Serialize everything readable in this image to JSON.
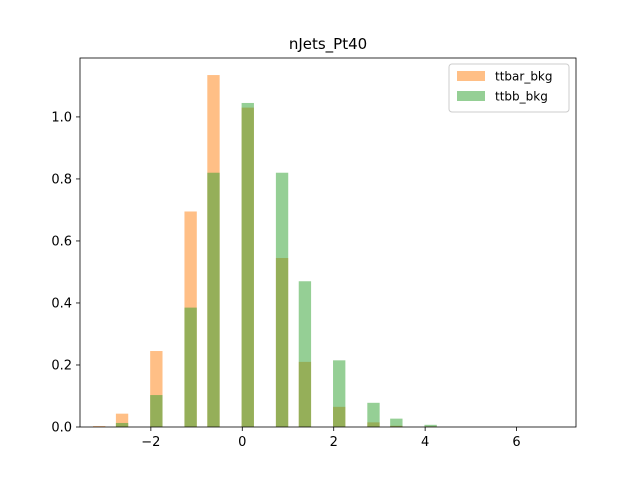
{
  "chart_data": {
    "type": "bar",
    "title": "nJets_Pt40",
    "xlabel": "",
    "ylabel": "",
    "xlim": [
      -3.55,
      7.3
    ],
    "ylim": [
      0,
      1.19
    ],
    "xticks": [
      -2,
      0,
      2,
      4,
      6
    ],
    "xtick_labels": [
      "−2",
      "0",
      "2",
      "4",
      "6"
    ],
    "yticks": [
      0.0,
      0.2,
      0.4,
      0.6,
      0.8,
      1.0
    ],
    "ytick_labels": [
      "0.0",
      "0.2",
      "0.4",
      "0.6",
      "0.8",
      "1.0"
    ],
    "bar_width": 0.27,
    "legend_position": "top-right",
    "grid": false,
    "series": [
      {
        "name": "ttbar_bkg",
        "color": "#ff7f0e",
        "alpha": 0.5,
        "x": [
          -3.13,
          -2.63,
          -1.88,
          -1.13,
          -0.63,
          0.12,
          0.87,
          1.37,
          2.12,
          2.87,
          3.37,
          4.12
        ],
        "values": [
          0.003,
          0.043,
          0.245,
          0.695,
          1.135,
          1.03,
          0.545,
          0.21,
          0.065,
          0.015,
          0.004,
          0.002
        ]
      },
      {
        "name": "ttbb_bkg",
        "color": "#2ca02c",
        "alpha": 0.5,
        "x": [
          -3.13,
          -2.63,
          -1.88,
          -1.13,
          -0.63,
          0.12,
          0.87,
          1.37,
          2.12,
          2.87,
          3.37,
          4.12
        ],
        "values": [
          0.0,
          0.013,
          0.103,
          0.385,
          0.82,
          1.045,
          0.82,
          0.47,
          0.215,
          0.078,
          0.027,
          0.007
        ]
      }
    ]
  }
}
